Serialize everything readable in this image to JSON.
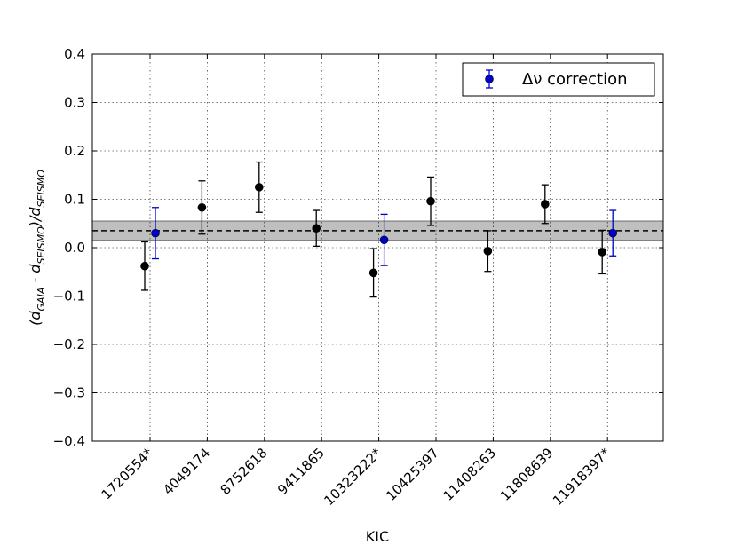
{
  "chart_data": {
    "type": "scatter",
    "xlabel": "KIC",
    "ylabel_parts": {
      "open": "(d",
      "sub1": "GAIA",
      "mid": " - d",
      "sub2": "SEISMO",
      "close": ")/d",
      "sub3": "SEISMO"
    },
    "ylim": [
      -0.4,
      0.4
    ],
    "yticks": [
      -0.4,
      -0.3,
      -0.2,
      -0.1,
      0.0,
      0.1,
      0.2,
      0.3,
      0.4
    ],
    "ytick_labels": [
      "−0.4",
      "−0.3",
      "−0.2",
      "−0.1",
      "0.0",
      "0.1",
      "0.2",
      "0.3",
      "0.4"
    ],
    "categories": [
      "1720554*",
      "4049174",
      "8752618",
      "9411865",
      "10323222*",
      "10425397",
      "11408263",
      "11808639",
      "11918397*"
    ],
    "grid": true,
    "mean_line": 0.035,
    "band": [
      0.015,
      0.055
    ],
    "series": [
      {
        "color": "#000000",
        "points": [
          {
            "index": 0,
            "y": -0.038,
            "err": 0.05
          },
          {
            "index": 1,
            "y": 0.083,
            "err": 0.055
          },
          {
            "index": 2,
            "y": 0.125,
            "err": 0.052
          },
          {
            "index": 3,
            "y": 0.04,
            "err": 0.037
          },
          {
            "index": 4,
            "y": -0.052,
            "err": 0.05
          },
          {
            "index": 5,
            "y": 0.096,
            "err": 0.05
          },
          {
            "index": 6,
            "y": -0.007,
            "err": 0.042
          },
          {
            "index": 7,
            "y": 0.09,
            "err": 0.04
          },
          {
            "index": 8,
            "y": -0.009,
            "err": 0.045
          }
        ]
      },
      {
        "name": "Δν correction",
        "color": "#0000cc",
        "points": [
          {
            "index": 0,
            "y": 0.03,
            "err": 0.053
          },
          {
            "index": 4,
            "y": 0.016,
            "err": 0.053
          },
          {
            "index": 8,
            "y": 0.03,
            "err": 0.047
          }
        ]
      }
    ],
    "legend_position": "top-right"
  }
}
